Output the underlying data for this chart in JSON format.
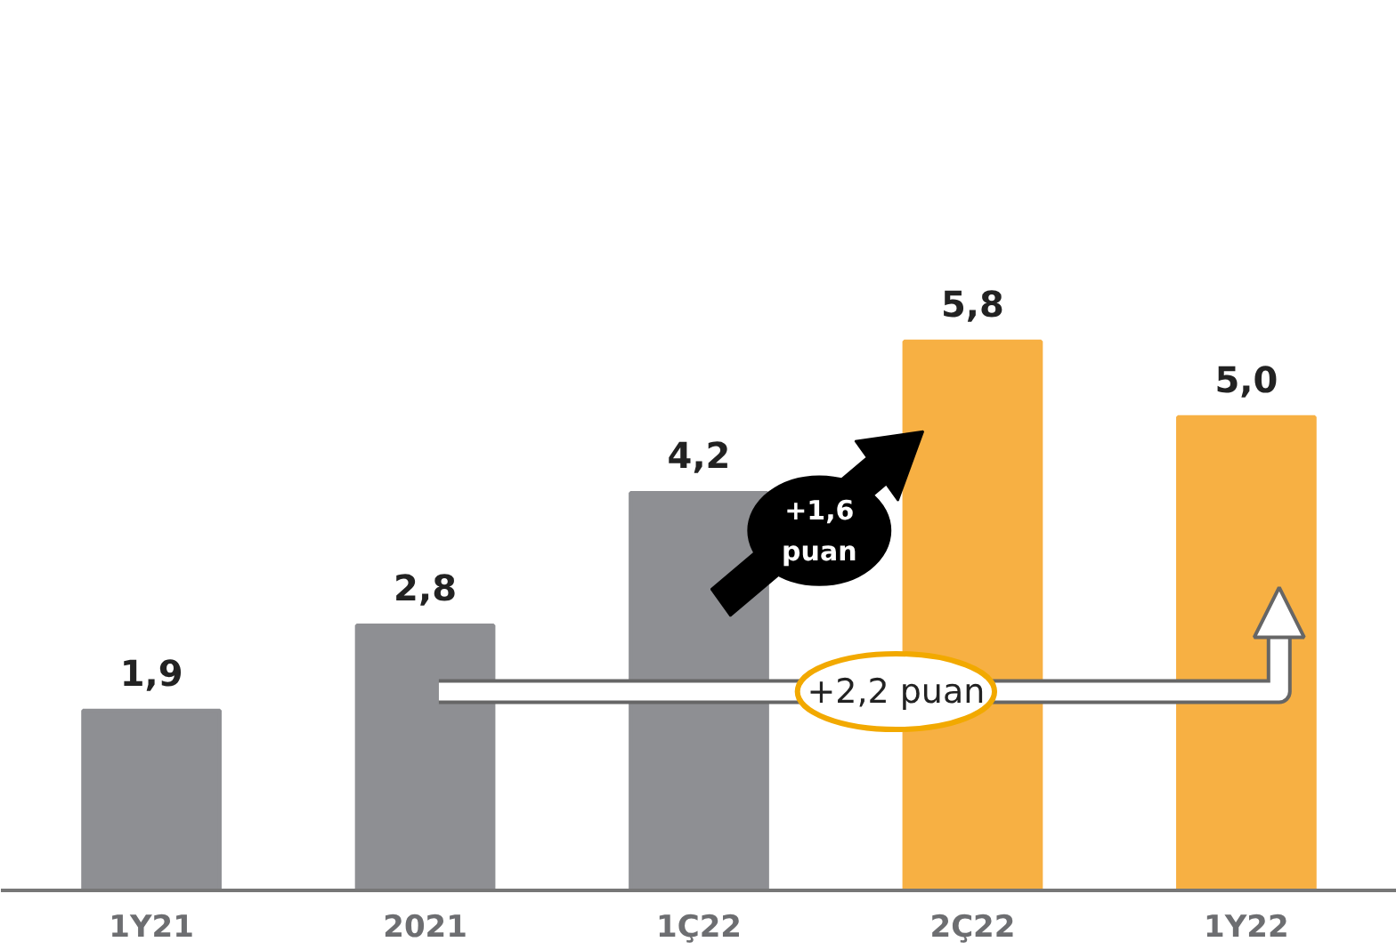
{
  "chart_data": {
    "type": "bar",
    "categories": [
      "1Y21",
      "2021",
      "1Ç22",
      "2Ç22",
      "1Y22"
    ],
    "values": [
      1.9,
      2.8,
      4.2,
      5.8,
      5.0
    ],
    "colors": [
      "#8e8f93",
      "#8e8f93",
      "#8e8f93",
      "#f7b043",
      "#f7b043"
    ],
    "value_labels": [
      "1,9",
      "2,8",
      "4,2",
      "5,8",
      "5,0"
    ],
    "annotations": [
      "+1,6\npuan",
      "+2,2 puan"
    ],
    "grid": false
  }
}
